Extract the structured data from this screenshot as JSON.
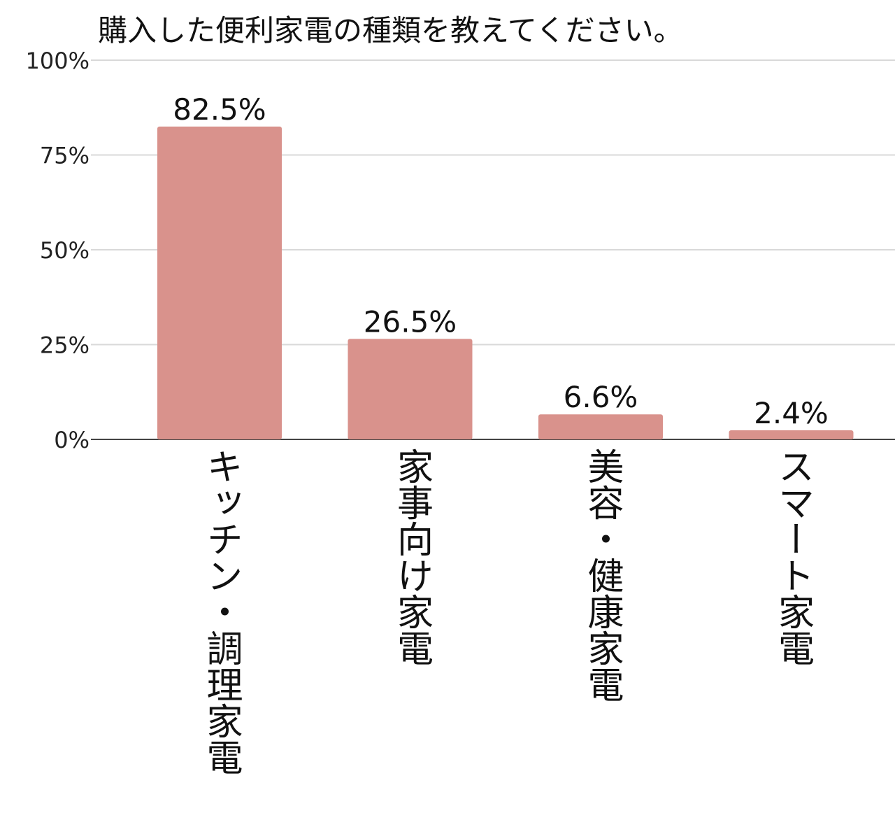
{
  "chart_data": {
    "type": "bar",
    "title": "購入した便利家電の種類を教えてください。",
    "categories": [
      "キッチン・調理家電",
      "家事向け家電",
      "美容・健康家電",
      "スマート家電"
    ],
    "values": [
      82.5,
      26.5,
      6.6,
      2.4
    ],
    "data_labels": [
      "82.5%",
      "26.5%",
      "6.6%",
      "2.4%"
    ],
    "yticks": [
      0,
      25,
      50,
      75,
      100
    ],
    "ytick_labels": [
      "0%",
      "25%",
      "50%",
      "75%",
      "100%"
    ],
    "ylim": [
      0,
      100
    ],
    "xlabel": "",
    "ylabel": "",
    "grid": true,
    "colors": {
      "bar": "#d9928c",
      "grid": "#d9d9d9",
      "axis": "#444444"
    }
  }
}
